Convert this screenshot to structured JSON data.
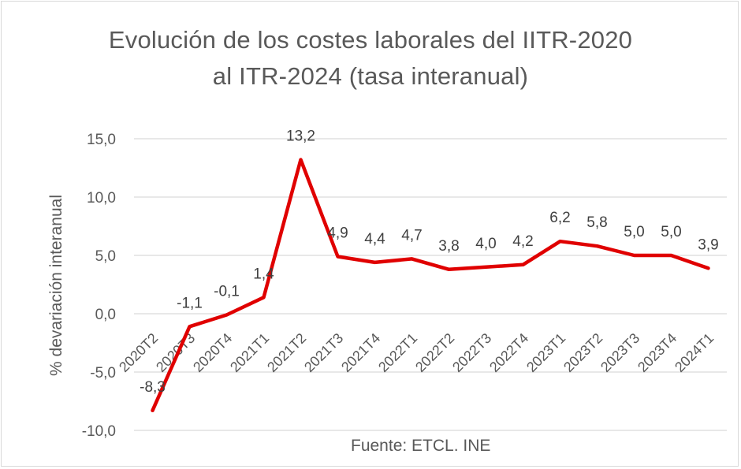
{
  "chart_data": {
    "type": "line",
    "title_line1": "Evolución de los costes laborales del IITR-2020",
    "title_line2": "al ITR-2024 (tasa interanual)",
    "ylabel": "% devariación interanual",
    "xlabel": "",
    "source": "Fuente: ETCL. INE",
    "ylim": [
      -10,
      15
    ],
    "yticks": [
      15,
      10,
      5,
      0,
      -5,
      -10
    ],
    "ytick_labels": [
      "15,0",
      "10,0",
      "5,0",
      "0,0",
      "-5,0",
      "-10,0"
    ],
    "grid": true,
    "categories": [
      "2020T2",
      "2020T3",
      "2020T4",
      "2021T1",
      "2021T2",
      "2021T3",
      "2021T4",
      "2022T1",
      "2022T2",
      "2022T3",
      "2022T4",
      "2023T1",
      "2023T2",
      "2023T3",
      "2023T4",
      "2024T1"
    ],
    "series": [
      {
        "values": [
          -8.3,
          -1.1,
          -0.1,
          1.4,
          13.2,
          4.9,
          4.4,
          4.7,
          3.8,
          4.0,
          4.2,
          6.2,
          5.8,
          5.0,
          5.0,
          3.9
        ],
        "data_labels": [
          "-8,3",
          "-1,1",
          "-0,1",
          "1,4",
          "13,2",
          "4,9",
          "4,4",
          "4,7",
          "3,8",
          "4,0",
          "4,2",
          "6,2",
          "5,8",
          "5,0",
          "5,0",
          "3,9"
        ],
        "color": "#e00000"
      }
    ],
    "axis_text_color": "#595959",
    "gridline_color": "#d9d9d9"
  }
}
